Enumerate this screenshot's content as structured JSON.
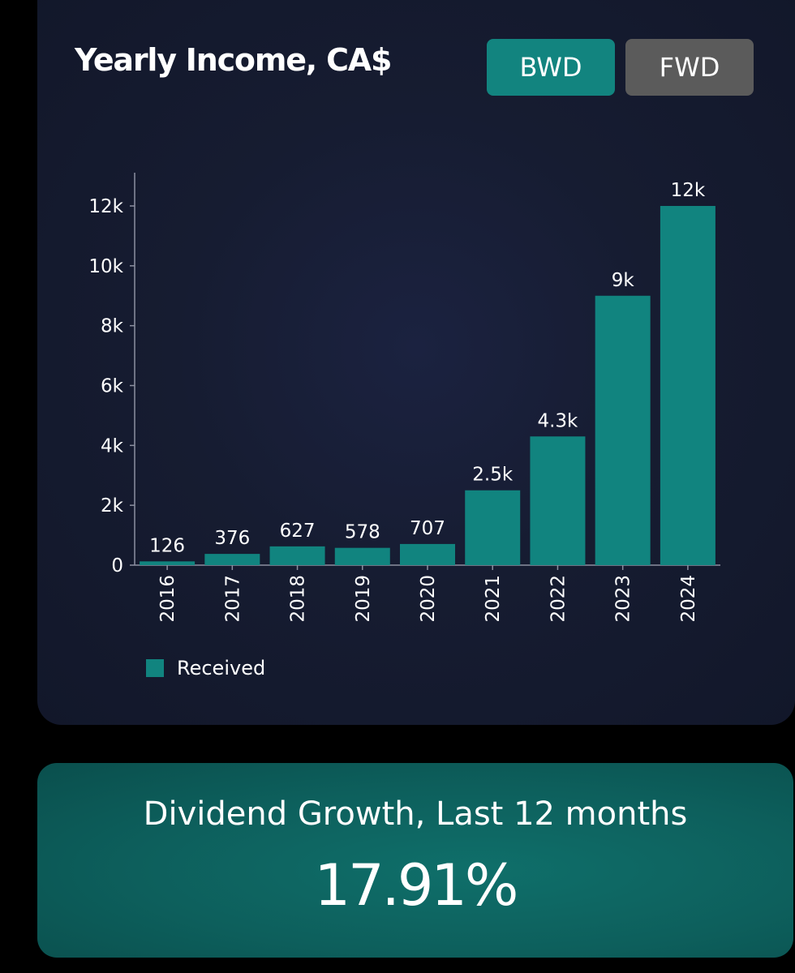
{
  "title": "Yearly Income, CA$",
  "toggle": {
    "bwd_label": "BWD",
    "fwd_label": "FWD",
    "selected": "BWD"
  },
  "colors": {
    "bar": "#11847f",
    "active_button": "#12847f",
    "inactive_button": "#5b5b5b",
    "card_background": "#161c31",
    "growth_background": "#0d5f5c"
  },
  "chart_data": {
    "type": "bar",
    "categories": [
      "2016",
      "2017",
      "2018",
      "2019",
      "2020",
      "2021",
      "2022",
      "2023",
      "2024"
    ],
    "values": [
      126,
      376,
      627,
      578,
      707,
      2500,
      4300,
      9000,
      12000
    ],
    "data_labels": [
      "126",
      "376",
      "627",
      "578",
      "707",
      "2.5k",
      "4.3k",
      "9k",
      "12k"
    ],
    "ylim": [
      0,
      13000
    ],
    "yticks": [
      0,
      2000,
      4000,
      6000,
      8000,
      10000,
      12000
    ],
    "ytick_labels": [
      "0",
      "2k",
      "4k",
      "6k",
      "8k",
      "10k",
      "12k"
    ],
    "legend": [
      "Received"
    ],
    "legend_position": "bottom-left",
    "grid": false
  },
  "growth": {
    "label": "Dividend Growth, Last 12 months",
    "value": "17.91%"
  }
}
